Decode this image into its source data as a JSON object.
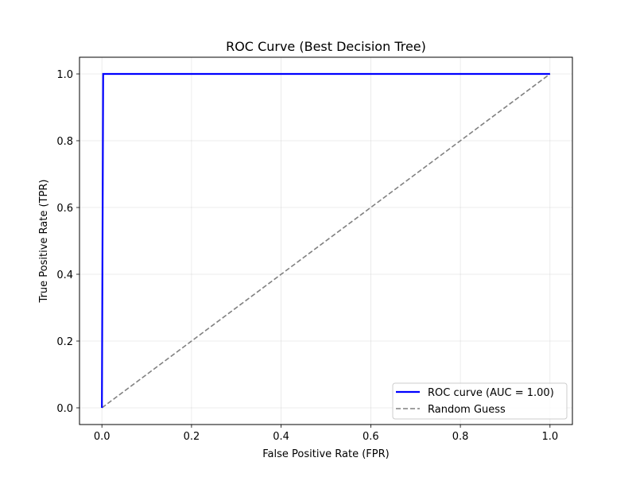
{
  "chart_data": {
    "type": "line",
    "title": "ROC Curve (Best Decision Tree)",
    "xlabel": "False Positive Rate (FPR)",
    "ylabel": "True Positive Rate (TPR)",
    "xlim": [
      -0.05,
      1.05
    ],
    "ylim": [
      -0.05,
      1.05
    ],
    "x_ticks": [
      "0.0",
      "0.2",
      "0.4",
      "0.6",
      "0.8",
      "1.0"
    ],
    "y_ticks": [
      "0.0",
      "0.2",
      "0.4",
      "0.6",
      "0.8",
      "1.0"
    ],
    "grid": true,
    "legend_position": "lower-right",
    "series": [
      {
        "name": "ROC curve (AUC = 1.00)",
        "color": "#0000ff",
        "style": "solid",
        "x": [
          0.0,
          0.0,
          0.0028,
          1.0
        ],
        "y": [
          0.0,
          0.0,
          1.0,
          1.0
        ]
      },
      {
        "name": "Random Guess",
        "color": "#808080",
        "style": "dashed",
        "x": [
          0.0,
          1.0
        ],
        "y": [
          0.0,
          1.0
        ]
      }
    ]
  }
}
